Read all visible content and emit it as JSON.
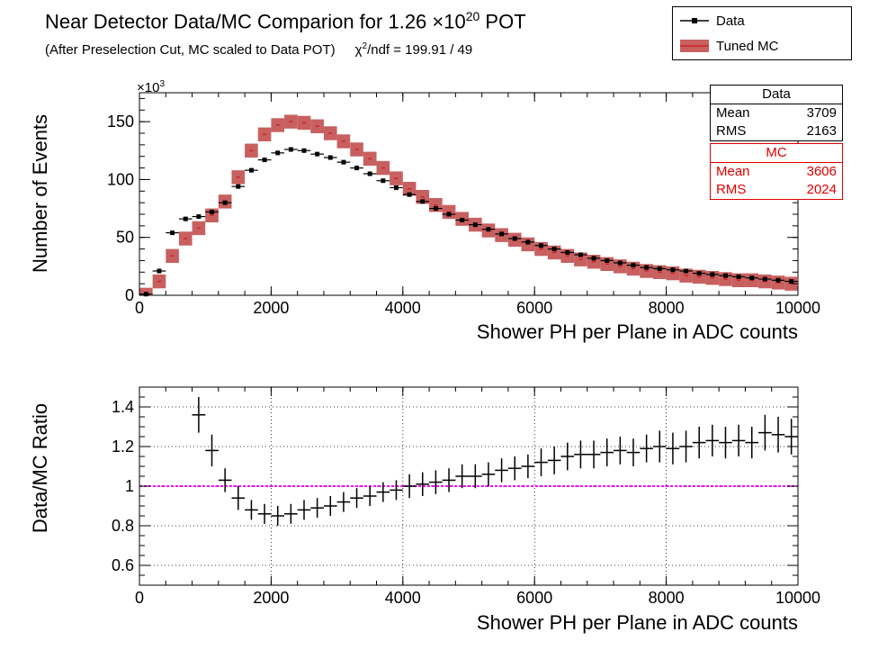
{
  "header": {
    "title": "Near Detector Data/MC Comparion for 1.26 ×10",
    "title_exp": "20",
    "title_suffix": " POT",
    "subtitle": "(After Preselection Cut, MC scaled to Data POT)",
    "chi_prefix": "χ",
    "chi_exp": "2",
    "chi_suffix": "/ndf = 199.91 / 49"
  },
  "legend": {
    "items": [
      {
        "label": "Data"
      },
      {
        "label": "Tuned MC"
      }
    ]
  },
  "stats": {
    "data": {
      "title": "Data",
      "mean_label": "Mean",
      "mean": "3709",
      "rms_label": "RMS",
      "rms": "2163"
    },
    "mc": {
      "title": "MC",
      "mean_label": "Mean",
      "mean": "3606",
      "rms_label": "RMS",
      "rms": "2024"
    }
  },
  "colors": {
    "data": "#000000",
    "mc": "#cc2222",
    "mc_fill": "#c86060",
    "ratio_line": "#ff00ff"
  },
  "chart_data": [
    {
      "type": "bar",
      "title": "",
      "xlabel": "Shower PH per Plane in ADC counts",
      "ylabel": "Number of Events",
      "multiplier": "×10",
      "multiplier_exp": "3",
      "xlim": [
        0,
        10000
      ],
      "ylim": [
        0,
        175
      ],
      "xticks": [
        0,
        2000,
        4000,
        6000,
        8000,
        10000
      ],
      "yticks": [
        0,
        50,
        100,
        150
      ],
      "bin_width": 200,
      "x": [
        100,
        300,
        500,
        700,
        900,
        1100,
        1300,
        1500,
        1700,
        1900,
        2100,
        2300,
        2500,
        2700,
        2900,
        3100,
        3300,
        3500,
        3700,
        3900,
        4100,
        4300,
        4500,
        4700,
        4900,
        5100,
        5300,
        5500,
        5700,
        5900,
        6100,
        6300,
        6500,
        6700,
        6900,
        7100,
        7300,
        7500,
        7700,
        7900,
        8100,
        8300,
        8500,
        8700,
        8900,
        9100,
        9300,
        9500,
        9700,
        9900
      ],
      "series": [
        {
          "name": "Data",
          "values": [
            1,
            21,
            54,
            66,
            68,
            72,
            80,
            94,
            108,
            117,
            123,
            126,
            125,
            122,
            119,
            115,
            110,
            105,
            99,
            93,
            87,
            81,
            75,
            70,
            65,
            61,
            57,
            53,
            49,
            46,
            43,
            40,
            37,
            35,
            32,
            30,
            28,
            26,
            24,
            23,
            22,
            21,
            19,
            18,
            17,
            16,
            15,
            14,
            13,
            12
          ]
        },
        {
          "name": "Tuned MC",
          "values": [
            0.5,
            12,
            34,
            49,
            58,
            69,
            81,
            102,
            125,
            139,
            147,
            150,
            149,
            146,
            140,
            133,
            126,
            118,
            110,
            101,
            92,
            85,
            78,
            72,
            66,
            61,
            56,
            52,
            48,
            44,
            40,
            37,
            34,
            31,
            29,
            27,
            25,
            23,
            21,
            20,
            19,
            17,
            16,
            15,
            14,
            13,
            13,
            12,
            11,
            10
          ],
          "band": 6
        }
      ]
    },
    {
      "type": "scatter",
      "title": "",
      "xlabel": "Shower PH per Plane in ADC counts",
      "ylabel": "Data/MC Ratio",
      "xlim": [
        0,
        10000
      ],
      "ylim": [
        0.5,
        1.5
      ],
      "xticks": [
        0,
        2000,
        4000,
        6000,
        8000,
        10000
      ],
      "yticks": [
        0.6,
        0.8,
        1,
        1.2,
        1.4
      ],
      "reference_line": 1,
      "bin_width": 200,
      "x": [
        900,
        1100,
        1300,
        1500,
        1700,
        1900,
        2100,
        2300,
        2500,
        2700,
        2900,
        3100,
        3300,
        3500,
        3700,
        3900,
        4100,
        4300,
        4500,
        4700,
        4900,
        5100,
        5300,
        5500,
        5700,
        5900,
        6100,
        6300,
        6500,
        6700,
        6900,
        7100,
        7300,
        7500,
        7700,
        7900,
        8100,
        8300,
        8500,
        8700,
        8900,
        9100,
        9300,
        9500,
        9700,
        9900
      ],
      "values": [
        1.36,
        1.18,
        1.03,
        0.94,
        0.88,
        0.86,
        0.85,
        0.86,
        0.88,
        0.89,
        0.9,
        0.92,
        0.94,
        0.95,
        0.97,
        0.98,
        1.0,
        1.01,
        1.02,
        1.03,
        1.05,
        1.05,
        1.06,
        1.08,
        1.09,
        1.1,
        1.12,
        1.13,
        1.15,
        1.16,
        1.16,
        1.17,
        1.18,
        1.17,
        1.19,
        1.2,
        1.19,
        1.2,
        1.22,
        1.23,
        1.22,
        1.23,
        1.22,
        1.27,
        1.26,
        1.25
      ],
      "errors": [
        0.09,
        0.08,
        0.06,
        0.06,
        0.05,
        0.05,
        0.05,
        0.05,
        0.05,
        0.05,
        0.05,
        0.05,
        0.05,
        0.05,
        0.05,
        0.05,
        0.06,
        0.06,
        0.06,
        0.06,
        0.06,
        0.06,
        0.06,
        0.06,
        0.06,
        0.06,
        0.07,
        0.07,
        0.07,
        0.07,
        0.07,
        0.07,
        0.07,
        0.07,
        0.07,
        0.08,
        0.08,
        0.08,
        0.08,
        0.08,
        0.08,
        0.08,
        0.08,
        0.09,
        0.09,
        0.09
      ]
    }
  ]
}
